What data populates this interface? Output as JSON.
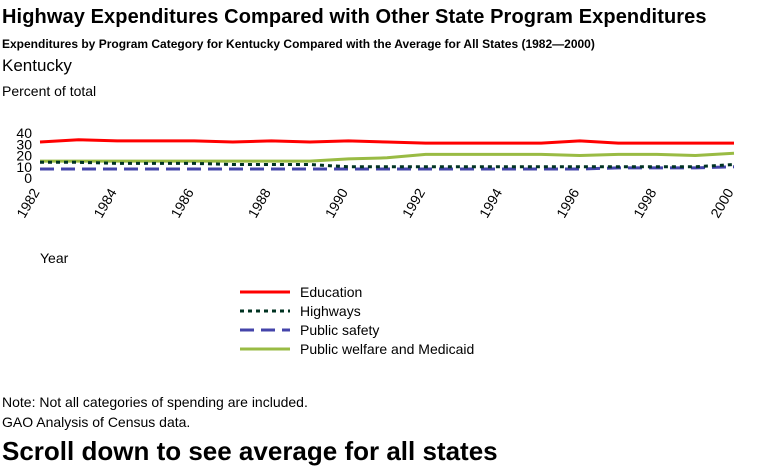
{
  "page": {
    "title": "Highway Expenditures Compared with Other State Program Expenditures",
    "subtitle": "Expenditures by Program Category for Kentucky Compared with the Average for All States (1982—2000)",
    "state": "Kentucky",
    "note": "Note:  Not all categories of spending are included.",
    "source": "GAO Analysis of Census data.",
    "scroll_hint": "Scroll down to see average for all states"
  },
  "chart_data": {
    "type": "line",
    "ylabel": "Percent of total",
    "xlabel": "Year",
    "ylim": [
      0,
      40
    ],
    "yticks": [
      "0",
      "10",
      "20",
      "30",
      "40"
    ],
    "xlim": [
      1982,
      2000
    ],
    "xticks": [
      "1982",
      "1984",
      "1986",
      "1988",
      "1990",
      "1992",
      "1994",
      "1996",
      "1998",
      "2000"
    ],
    "grid": false,
    "legend_position": "below",
    "x": [
      1982,
      1983,
      1984,
      1985,
      1986,
      1987,
      1988,
      1989,
      1990,
      1991,
      1992,
      1993,
      1994,
      1995,
      1996,
      1997,
      1998,
      1999,
      2000
    ],
    "series": [
      {
        "name": "Education",
        "color": "#ff0000",
        "dash": "solid",
        "values": [
          32,
          34,
          33,
          33,
          33,
          32,
          33,
          32,
          33,
          32,
          31,
          31,
          31,
          31,
          33,
          31,
          31,
          31,
          31
        ]
      },
      {
        "name": "Highways",
        "color": "#003322",
        "dash": "dot",
        "values": [
          14,
          14,
          13,
          13,
          13,
          12,
          12,
          12,
          10,
          10,
          10,
          10,
          10,
          10,
          10,
          10,
          10,
          10,
          12
        ]
      },
      {
        "name": "Public safety",
        "color": "#4444aa",
        "dash": "dash",
        "values": [
          8,
          8,
          8,
          8,
          8,
          8,
          8,
          8,
          8,
          8,
          8,
          8,
          8,
          8,
          8,
          9,
          9,
          9,
          10
        ]
      },
      {
        "name": "Public welfare and Medicaid",
        "color": "#99bb44",
        "dash": "solid",
        "values": [
          15,
          15,
          15,
          15,
          15,
          15,
          15,
          15,
          17,
          18,
          21,
          21,
          21,
          21,
          20,
          21,
          21,
          20,
          22
        ]
      }
    ]
  }
}
